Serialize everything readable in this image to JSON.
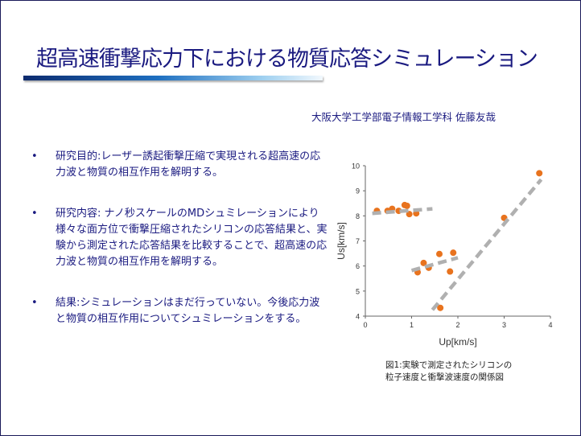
{
  "title": "超高速衝撃応力下における物質応答シミュレーション",
  "author": "大阪大学工学部電子情報工学科 佐藤友哉",
  "bullets": [
    "研究目的:レーザー誘起衝撃圧縮で実現される超高速の応力波と物質の相互作用を解明する。",
    "研究内容: ナノ秒スケールのMDシュミレーションにより様々な面方位で衝撃圧縮されたシリコンの応答結果と、実験から測定された応答結果を比較することで、超高速の応力波と物質の相互作用を解明する。",
    "結果:シミュレーションはまだ行っていない。今後応力波と物質の相互作用についてシュミレーションをする。"
  ],
  "caption": [
    "図1:実験で測定されたシリコンの",
    "粒子速度と衝撃波速度の関係図"
  ],
  "chart_data": {
    "type": "scatter",
    "xlabel": "Up[km/s]",
    "ylabel": "Us[km/s]",
    "xlim": [
      0,
      4
    ],
    "ylim": [
      4,
      10
    ],
    "xticks": [
      "0",
      "1",
      "2",
      "3",
      "4"
    ],
    "yticks": [
      "4",
      "5",
      "6",
      "7",
      "8",
      "9",
      "10"
    ],
    "point_color": "#e8731e",
    "trend_color": "#b0b0b0",
    "points": [
      [
        0.25,
        8.2
      ],
      [
        0.48,
        8.2
      ],
      [
        0.58,
        8.28
      ],
      [
        0.72,
        8.2
      ],
      [
        0.85,
        8.43
      ],
      [
        0.9,
        8.4
      ],
      [
        0.95,
        8.07
      ],
      [
        1.1,
        8.1
      ],
      [
        1.13,
        5.75
      ],
      [
        1.26,
        6.12
      ],
      [
        1.37,
        5.93
      ],
      [
        1.6,
        6.48
      ],
      [
        1.83,
        5.78
      ],
      [
        1.9,
        6.53
      ],
      [
        1.62,
        4.33
      ],
      [
        3.0,
        7.92
      ],
      [
        3.76,
        9.7
      ]
    ],
    "trendlines": [
      [
        [
          0.15,
          8.1
        ],
        [
          1.45,
          8.28
        ]
      ],
      [
        [
          1.0,
          5.82
        ],
        [
          2.0,
          6.33
        ]
      ],
      [
        [
          1.45,
          4.25
        ],
        [
          3.8,
          9.45
        ]
      ]
    ]
  }
}
